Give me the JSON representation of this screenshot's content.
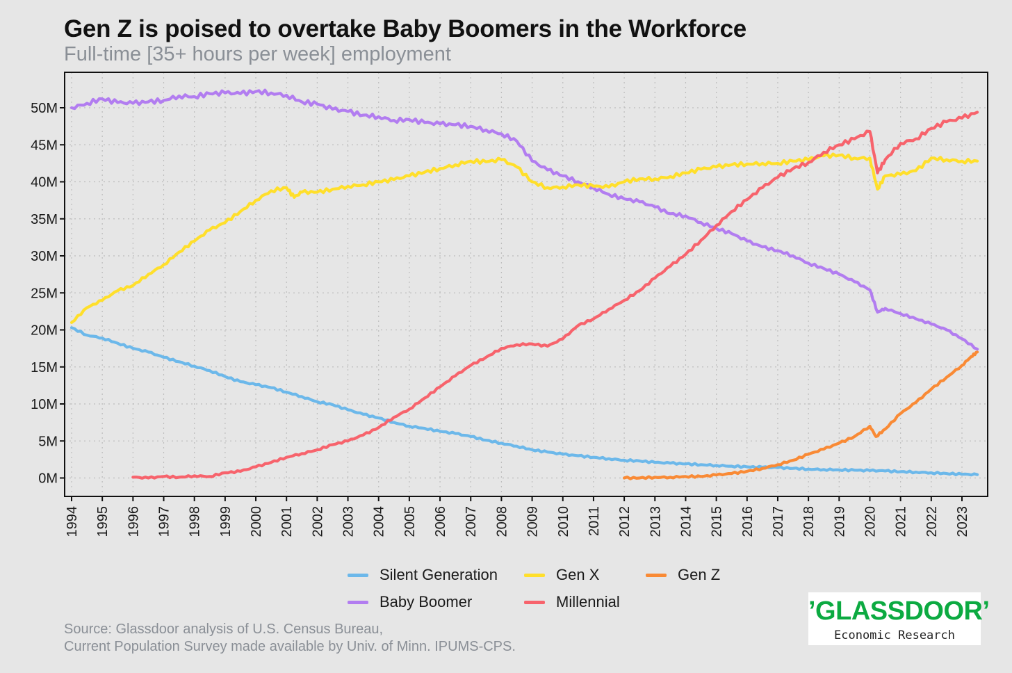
{
  "title": "Gen Z is poised to overtake Baby Boomers in the Workforce",
  "subtitle": "Full-time [35+ hours per week] employment",
  "source_lines": [
    "Source: Glassdoor analysis of U.S. Census Bureau,",
    "Current Population Survey made available by Univ. of Minn. IPUMS-CPS."
  ],
  "logo": {
    "word": "’GLASSDOOR’",
    "sub": "Economic Research",
    "color": "#0caa41"
  },
  "legend": [
    {
      "name": "Silent Generation",
      "color": "#6cb8ea"
    },
    {
      "name": "Gen X",
      "color": "#ffdf2b"
    },
    {
      "name": "Gen Z",
      "color": "#f98a35"
    },
    {
      "name": "Baby Boomer",
      "color": "#b27df0"
    },
    {
      "name": "Millennial",
      "color": "#f7636c"
    }
  ],
  "chart_data": {
    "type": "line",
    "title": "Gen Z is poised to overtake Baby Boomers in the Workforce",
    "subtitle": "Full-time [35+ hours per week] employment",
    "xlabel": "",
    "ylabel": "",
    "xlim": [
      1994,
      2023.67
    ],
    "ylim": [
      -2.5,
      54.5
    ],
    "x_ticks": [
      "1994",
      "1995",
      "1996",
      "1997",
      "1998",
      "1999",
      "2000",
      "2001",
      "2002",
      "2003",
      "2004",
      "2005",
      "2006",
      "2007",
      "2008",
      "2009",
      "2010",
      "2011",
      "2012",
      "2013",
      "2014",
      "2015",
      "2016",
      "2017",
      "2018",
      "2019",
      "2020",
      "2021",
      "2022",
      "2023"
    ],
    "y_ticks": [
      {
        "value": 0,
        "label": "0M"
      },
      {
        "value": 5,
        "label": "5M"
      },
      {
        "value": 10,
        "label": "10M"
      },
      {
        "value": 15,
        "label": "15M"
      },
      {
        "value": 20,
        "label": "20M"
      },
      {
        "value": 25,
        "label": "25M"
      },
      {
        "value": 30,
        "label": "30M"
      },
      {
        "value": 35,
        "label": "35M"
      },
      {
        "value": 40,
        "label": "40M"
      },
      {
        "value": 45,
        "label": "45M"
      },
      {
        "value": 50,
        "label": "50M"
      }
    ],
    "grid": true,
    "legend_position": "bottom",
    "units": "millions of workers",
    "series": [
      {
        "name": "Silent Generation",
        "color": "#6cb8ea",
        "x": [
          1994,
          1994.5,
          1995,
          1995.5,
          1996,
          1996.5,
          1997,
          1997.5,
          1998,
          1998.5,
          1999,
          1999.5,
          2000,
          2000.5,
          2001,
          2001.5,
          2002,
          2002.5,
          2003,
          2003.5,
          2004,
          2004.5,
          2005,
          2005.5,
          2006,
          2006.5,
          2007,
          2007.5,
          2008,
          2008.5,
          2009,
          2009.5,
          2010,
          2010.5,
          2011,
          2011.5,
          2012,
          2012.5,
          2013,
          2013.5,
          2014,
          2014.5,
          2015,
          2015.5,
          2016,
          2016.5,
          2017,
          2017.5,
          2018,
          2018.5,
          2019,
          2019.5,
          2020,
          2020.5,
          2021,
          2021.5,
          2022,
          2022.5,
          2023,
          2023.5
        ],
        "y": [
          20.3,
          19.3,
          18.9,
          18.2,
          17.5,
          17.0,
          16.3,
          15.7,
          15.1,
          14.5,
          13.7,
          13.0,
          12.6,
          12.2,
          11.6,
          11.0,
          10.3,
          9.9,
          9.2,
          8.6,
          8.1,
          7.5,
          7.0,
          6.7,
          6.3,
          6.0,
          5.6,
          5.1,
          4.7,
          4.3,
          3.8,
          3.5,
          3.2,
          3.0,
          2.8,
          2.6,
          2.4,
          2.3,
          2.1,
          2.0,
          1.9,
          1.8,
          1.7,
          1.6,
          1.5,
          1.45,
          1.4,
          1.3,
          1.2,
          1.15,
          1.1,
          1.05,
          1.0,
          0.95,
          0.85,
          0.8,
          0.7,
          0.6,
          0.5,
          0.45
        ]
      },
      {
        "name": "Baby Boomer",
        "color": "#b27df0",
        "x": [
          1994,
          1994.5,
          1995,
          1995.5,
          1996,
          1996.5,
          1997,
          1997.5,
          1998,
          1998.5,
          1999,
          1999.5,
          2000,
          2000.5,
          2001,
          2001.5,
          2002,
          2002.5,
          2003,
          2003.5,
          2004,
          2004.5,
          2005,
          2005.5,
          2006,
          2006.5,
          2007,
          2007.5,
          2008,
          2008.5,
          2009,
          2009.5,
          2010,
          2010.5,
          2011,
          2011.5,
          2012,
          2012.5,
          2013,
          2013.5,
          2014,
          2014.5,
          2015,
          2015.5,
          2016,
          2016.5,
          2017,
          2017.5,
          2018,
          2018.5,
          2019,
          2019.5,
          2020,
          2020.25,
          2020.5,
          2021,
          2021.5,
          2022,
          2022.5,
          2023,
          2023.5
        ],
        "y": [
          50.0,
          50.6,
          51.2,
          50.7,
          50.6,
          50.8,
          51.0,
          51.6,
          51.5,
          51.9,
          52.0,
          51.9,
          52.2,
          52.0,
          51.7,
          50.8,
          50.5,
          49.8,
          49.5,
          49.0,
          48.8,
          48.3,
          48.4,
          48.0,
          47.8,
          47.7,
          47.5,
          47.0,
          46.5,
          45.5,
          42.8,
          41.6,
          40.8,
          40.0,
          39.2,
          38.3,
          37.7,
          37.3,
          36.6,
          35.7,
          35.4,
          34.5,
          33.7,
          33.0,
          32.0,
          31.2,
          30.7,
          30.0,
          29.0,
          28.3,
          27.5,
          26.5,
          25.4,
          22.4,
          22.9,
          22.2,
          21.5,
          20.8,
          20.0,
          18.8,
          17.4
        ]
      },
      {
        "name": "Gen X",
        "color": "#ffdf2b",
        "x": [
          1994,
          1994.5,
          1995,
          1995.5,
          1996,
          1996.5,
          1997,
          1997.5,
          1998,
          1998.5,
          1999,
          1999.5,
          2000,
          2000.5,
          2001,
          2001.25,
          2001.5,
          2002,
          2002.5,
          2003,
          2003.5,
          2004,
          2004.5,
          2005,
          2005.5,
          2006,
          2006.5,
          2007,
          2007.5,
          2008,
          2008.5,
          2009,
          2009.5,
          2010,
          2010.5,
          2011,
          2011.5,
          2012,
          2012.5,
          2013,
          2013.5,
          2014,
          2014.5,
          2015,
          2015.5,
          2016,
          2016.5,
          2017,
          2017.5,
          2018,
          2018.5,
          2019,
          2019.5,
          2020,
          2020.25,
          2020.5,
          2021,
          2021.5,
          2022,
          2022.5,
          2023,
          2023.5
        ],
        "y": [
          21.0,
          23.0,
          24.0,
          25.3,
          26.0,
          27.5,
          28.8,
          30.5,
          32.0,
          33.5,
          34.5,
          36.0,
          37.5,
          38.8,
          39.2,
          37.9,
          38.6,
          38.6,
          39.0,
          39.4,
          39.6,
          40.0,
          40.3,
          40.8,
          41.3,
          41.8,
          42.3,
          42.8,
          42.7,
          43.0,
          42.0,
          40.0,
          39.2,
          39.3,
          39.6,
          39.4,
          39.3,
          40.0,
          40.4,
          40.4,
          40.7,
          41.2,
          41.7,
          42.0,
          42.3,
          42.4,
          42.5,
          42.5,
          42.8,
          43.0,
          43.5,
          43.6,
          43.2,
          43.2,
          39.0,
          40.8,
          41.0,
          41.5,
          43.2,
          43.0,
          42.8,
          42.8
        ]
      },
      {
        "name": "Millennial",
        "color": "#f7636c",
        "x": [
          1996,
          1996.5,
          1997,
          1997.5,
          1998,
          1998.5,
          1999,
          1999.5,
          2000,
          2000.5,
          2001,
          2001.5,
          2002,
          2002.5,
          2003,
          2003.5,
          2004,
          2004.5,
          2005,
          2005.5,
          2006,
          2006.5,
          2007,
          2007.5,
          2008,
          2008.5,
          2009,
          2009.5,
          2010,
          2010.5,
          2011,
          2011.5,
          2012,
          2012.5,
          2013,
          2013.5,
          2014,
          2014.5,
          2015,
          2015.5,
          2016,
          2016.5,
          2017,
          2017.5,
          2018,
          2018.5,
          2019,
          2019.5,
          2020,
          2020.25,
          2020.5,
          2021,
          2021.5,
          2022,
          2022.5,
          2023,
          2023.5
        ],
        "y": [
          0.1,
          0.0,
          0.2,
          0.1,
          0.3,
          0.2,
          0.7,
          0.9,
          1.5,
          2.1,
          2.8,
          3.3,
          3.8,
          4.5,
          5.0,
          5.8,
          6.8,
          8.2,
          9.3,
          10.8,
          12.3,
          13.8,
          15.2,
          16.3,
          17.5,
          18.0,
          18.1,
          17.8,
          18.8,
          20.6,
          21.5,
          22.8,
          24.0,
          25.3,
          27.0,
          28.6,
          30.2,
          32.1,
          34.1,
          36.0,
          37.6,
          39.2,
          40.6,
          41.8,
          42.6,
          44.0,
          45.0,
          45.8,
          46.8,
          41.2,
          43.0,
          45.2,
          45.8,
          47.2,
          48.1,
          48.6,
          49.4
        ]
      },
      {
        "name": "Gen Z",
        "color": "#f98a35",
        "x": [
          2012,
          2012.5,
          2013,
          2013.5,
          2014,
          2014.5,
          2015,
          2015.5,
          2016,
          2016.5,
          2017,
          2017.5,
          2018,
          2018.5,
          2019,
          2019.5,
          2020,
          2020.2,
          2020.5,
          2021,
          2021.5,
          2022,
          2022.5,
          2023,
          2023.3,
          2023.5
        ],
        "y": [
          0.0,
          0.0,
          0.1,
          0.1,
          0.2,
          0.2,
          0.4,
          0.6,
          0.9,
          1.3,
          1.8,
          2.4,
          3.2,
          3.9,
          4.7,
          5.6,
          7.0,
          5.6,
          6.6,
          8.7,
          10.2,
          12.0,
          13.6,
          15.2,
          16.4,
          17.0
        ]
      }
    ]
  }
}
